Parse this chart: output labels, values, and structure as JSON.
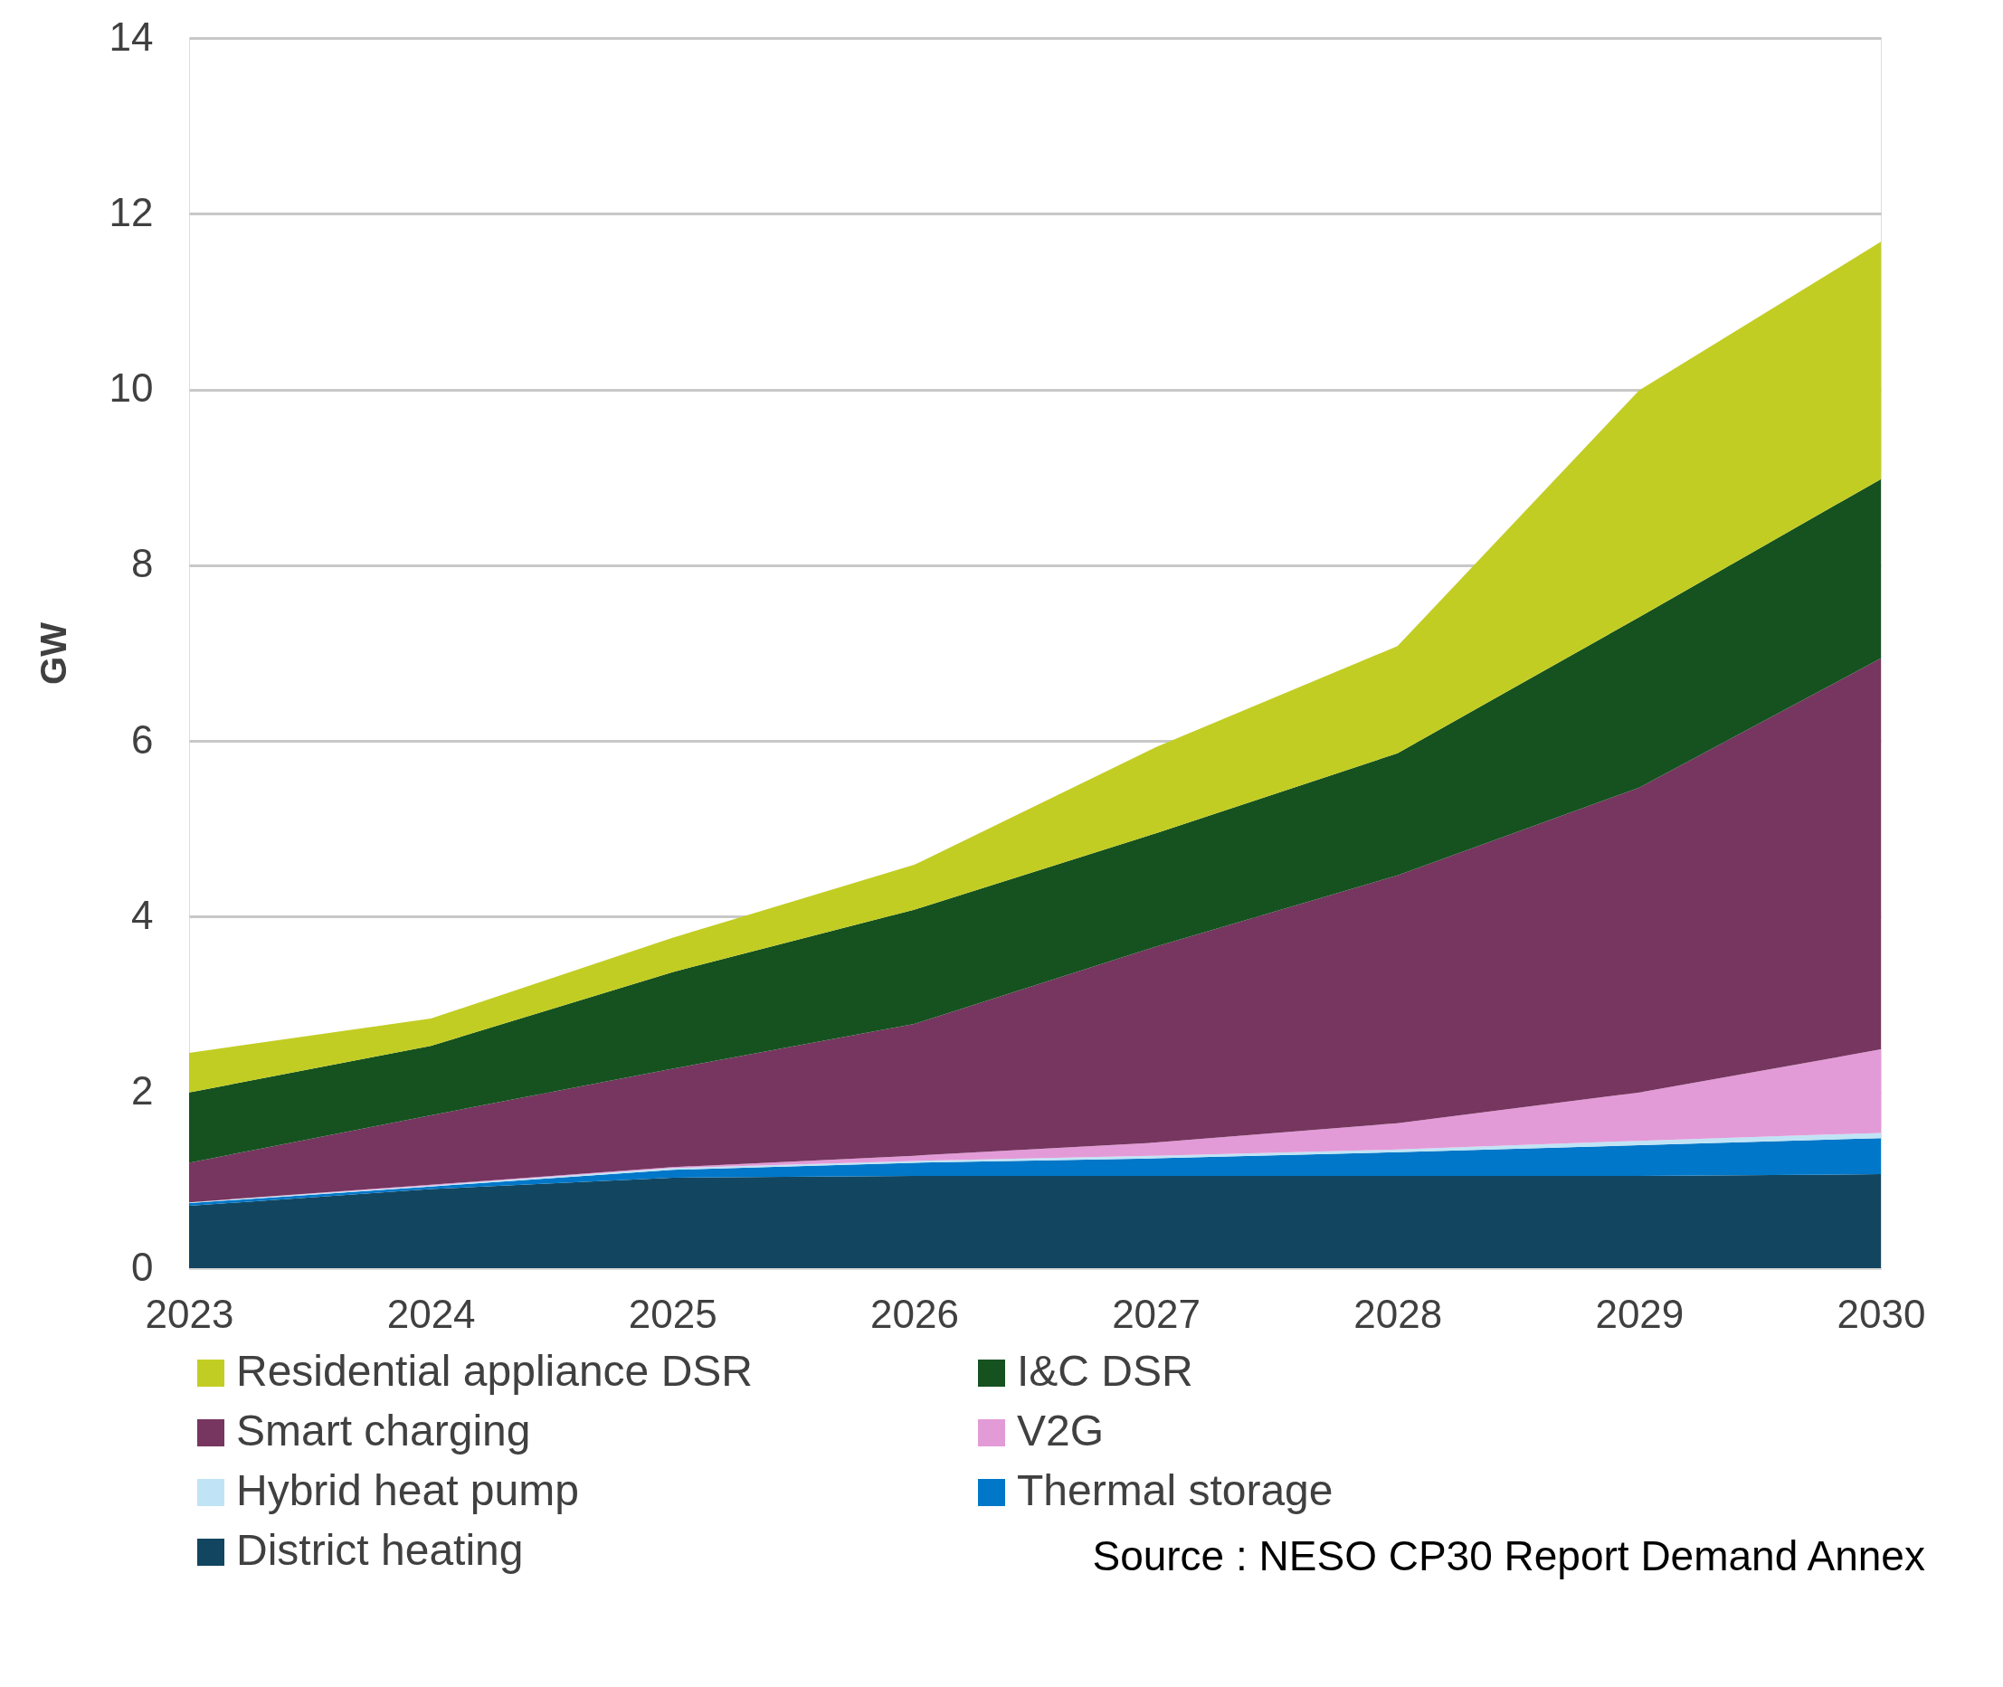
{
  "chart_data": {
    "type": "area",
    "stacked": true,
    "ylabel": "GW",
    "categories": [
      "2023",
      "2024",
      "2025",
      "2026",
      "2027",
      "2028",
      "2029",
      "2030"
    ],
    "ylim": [
      0,
      14
    ],
    "yticks": [
      0,
      2,
      4,
      6,
      8,
      10,
      12,
      14
    ],
    "grid": "y",
    "legend": "bottom",
    "annotations": [
      "Source : NESO CP30 Report Demand Annex"
    ],
    "series": [
      {
        "name": "District heating",
        "color": "#124660",
        "values": [
          0.71,
          0.9,
          1.03,
          1.05,
          1.05,
          1.05,
          1.05,
          1.07
        ]
      },
      {
        "name": "Thermal storage",
        "color": "#0077c8",
        "values": [
          0.03,
          0.03,
          0.09,
          0.15,
          0.2,
          0.27,
          0.35,
          0.41
        ]
      },
      {
        "name": "Hybrid heat pump",
        "color": "#c0e4f5",
        "values": [
          0.01,
          0.01,
          0.02,
          0.02,
          0.03,
          0.03,
          0.05,
          0.06
        ]
      },
      {
        "name": "V2G",
        "color": "#e39bd8",
        "values": [
          0,
          0.01,
          0.01,
          0.06,
          0.15,
          0.3,
          0.55,
          0.95
        ]
      },
      {
        "name": "Smart charging",
        "color": "#76365f",
        "values": [
          0.45,
          0.79,
          1.12,
          1.5,
          2.23,
          2.82,
          3.47,
          4.45
        ]
      },
      {
        "name": "I&C DSR",
        "color": "#155220",
        "values": [
          0.8,
          0.79,
          1.1,
          1.3,
          1.29,
          1.39,
          1.94,
          2.04
        ]
      },
      {
        "name": "Residential appliance DSR",
        "color": "#c2cd23",
        "values": [
          0.45,
          0.31,
          0.39,
          0.51,
          0.98,
          1.22,
          2.58,
          2.7
        ]
      }
    ]
  }
}
